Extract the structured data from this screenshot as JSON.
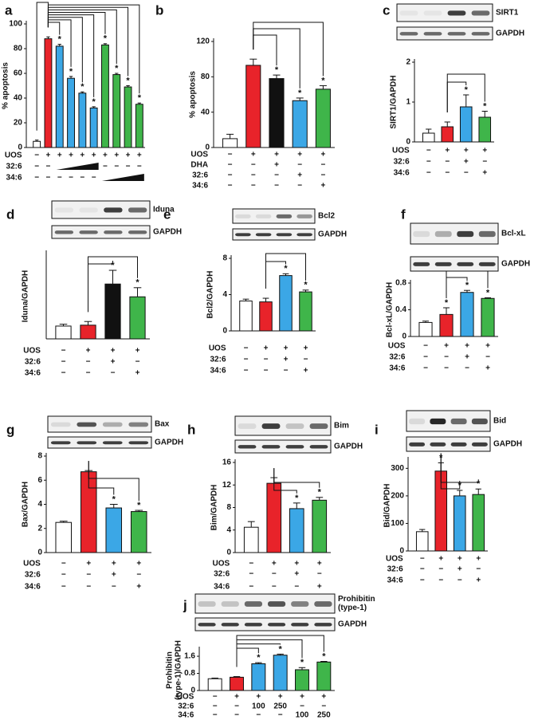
{
  "chart_data": [
    {
      "type": "bar",
      "label": "a",
      "y_label": [
        "% apoptosis"
      ],
      "ylim": [
        0,
        100
      ],
      "yticks": [
        0,
        20,
        40,
        60,
        80,
        100
      ],
      "values": [
        5,
        88,
        82,
        56,
        44,
        32,
        83,
        59,
        49,
        35
      ],
      "errors": [
        1,
        1.5,
        1.5,
        1.5,
        1,
        1,
        1,
        1,
        1,
        1
      ],
      "colors": [
        "#ffffff",
        "#e8232a",
        "#3ba7e6",
        "#3ba7e6",
        "#3ba7e6",
        "#3ba7e6",
        "#3fb54a",
        "#3fb54a",
        "#3fb54a",
        "#3fb54a"
      ],
      "stars": [
        null,
        null,
        "*",
        "*",
        "*",
        "*",
        "*",
        "*",
        "*",
        "*"
      ],
      "comparisons": [
        [
          1,
          2
        ],
        [
          1,
          3
        ],
        [
          1,
          4
        ],
        [
          1,
          5
        ],
        [
          1,
          6
        ],
        [
          1,
          7
        ],
        [
          1,
          8
        ],
        [
          1,
          9
        ],
        [
          0,
          1
        ]
      ],
      "rows": [
        {
          "name": "UOS",
          "marks": [
            "−",
            "+",
            "+",
            "+",
            "+",
            "+",
            "+",
            "+",
            "+",
            "+"
          ]
        },
        {
          "name": "32:6",
          "marks": [
            "−",
            "−",
            null,
            null,
            null,
            null,
            "−",
            "−",
            "−",
            "−"
          ]
        },
        {
          "name": "34:6",
          "marks": [
            "−",
            "−",
            "−",
            "−",
            "−",
            "−",
            null,
            null,
            null,
            null
          ]
        }
      ]
    },
    {
      "type": "bar",
      "label": "b",
      "y_label": [
        "% apoptosis"
      ],
      "ylim": [
        0,
        120
      ],
      "yticks": [
        0,
        40,
        80,
        120
      ],
      "values": [
        10,
        93,
        78,
        53,
        66
      ],
      "errors": [
        5,
        7,
        4,
        3,
        4
      ],
      "colors": [
        "#ffffff",
        "#e8232a",
        "#111111",
        "#3ba7e6",
        "#3fb54a"
      ],
      "stars": [
        null,
        null,
        "*",
        "*",
        "*"
      ],
      "comparisons": [
        [
          1,
          2
        ],
        [
          1,
          3
        ],
        [
          1,
          4
        ]
      ],
      "rows": [
        {
          "name": "UOS",
          "marks": [
            "−",
            "+",
            "+",
            "+",
            "+"
          ]
        },
        {
          "name": "DHA",
          "marks": [
            "−",
            "−",
            "+",
            "−",
            "−"
          ]
        },
        {
          "name": "32:6",
          "marks": [
            "−",
            "−",
            "−",
            "+",
            "−"
          ]
        },
        {
          "name": "34:6",
          "marks": [
            "−",
            "−",
            "−",
            "−",
            "+"
          ]
        }
      ]
    },
    {
      "type": "bar",
      "label": "c",
      "y_label": [
        "SIRT1/GAPDH"
      ],
      "ylim": [
        0,
        2
      ],
      "yticks": [
        0,
        1,
        2
      ],
      "blots": [
        [
          "SIRT1"
        ],
        [
          "GAPDH"
        ]
      ],
      "values": [
        0.22,
        0.38,
        0.88,
        0.62
      ],
      "errors": [
        0.1,
        0.12,
        0.3,
        0.15
      ],
      "colors": [
        "#ffffff",
        "#e8232a",
        "#3ba7e6",
        "#3fb54a"
      ],
      "stars": [
        null,
        null,
        "*",
        "*"
      ],
      "comparisons": [
        [
          1,
          2
        ],
        [
          1,
          3
        ]
      ],
      "rows": [
        {
          "name": "UOS",
          "marks": [
            "−",
            "+",
            "+",
            "+"
          ]
        },
        {
          "name": "32:6",
          "marks": [
            "−",
            "−",
            "+",
            "−"
          ]
        },
        {
          "name": "34:6",
          "marks": [
            "−",
            "−",
            "−",
            "+"
          ]
        }
      ]
    },
    {
      "type": "bar",
      "label": "d",
      "y_label": [
        "Iduna/GAPDH"
      ],
      "ylim": [
        0,
        2.8
      ],
      "blots": [
        [
          "Iduna"
        ],
        [
          "GAPDH"
        ]
      ],
      "values": [
        0.42,
        0.45,
        1.8,
        1.38
      ],
      "errors": [
        0.06,
        0.12,
        0.45,
        0.3
      ],
      "colors": [
        "#ffffff",
        "#e8232a",
        "#111111",
        "#3fb54a"
      ],
      "stars": [
        null,
        null,
        "*",
        "*"
      ],
      "comparisons": [
        [
          1,
          2
        ],
        [
          1,
          3
        ]
      ],
      "rows": [
        {
          "name": "UOS",
          "marks": [
            "−",
            "+",
            "+",
            "+"
          ]
        },
        {
          "name": "32:6",
          "marks": [
            "−",
            "−",
            "+",
            "−"
          ]
        },
        {
          "name": "34:6",
          "marks": [
            "−",
            "−",
            "−",
            "+"
          ]
        }
      ]
    },
    {
      "type": "bar",
      "label": "e",
      "y_label": [
        "Bcl2/GAPDH"
      ],
      "ylim": [
        0,
        8
      ],
      "yticks": [
        0,
        4,
        8
      ],
      "blots": [
        [
          "Bcl2"
        ],
        [
          "GAPDH"
        ]
      ],
      "values": [
        3.3,
        3.2,
        6.1,
        4.3
      ],
      "errors": [
        0.2,
        0.4,
        0.2,
        0.2
      ],
      "colors": [
        "#ffffff",
        "#e8232a",
        "#3ba7e6",
        "#3fb54a"
      ],
      "stars": [
        null,
        null,
        "*",
        "*"
      ],
      "comparisons": [
        [
          1,
          2
        ],
        [
          1,
          3
        ]
      ],
      "rows": [
        {
          "name": "UOS",
          "marks": [
            "−",
            "+",
            "+",
            "+"
          ]
        },
        {
          "name": "32:6",
          "marks": [
            "−",
            "−",
            "+",
            "−"
          ]
        },
        {
          "name": "34:6",
          "marks": [
            "−",
            "−",
            "−",
            "+"
          ]
        }
      ]
    },
    {
      "type": "bar",
      "label": "f",
      "y_label": [
        "Bcl-xL/GAPDH"
      ],
      "ylim": [
        0,
        0.8
      ],
      "yticks": [
        0,
        0.4,
        0.8
      ],
      "blots": [
        [
          "Bcl-xL"
        ],
        [
          "GAPDH"
        ]
      ],
      "values": [
        0.21,
        0.33,
        0.66,
        0.57
      ],
      "errors": [
        0.02,
        0.1,
        0.03,
        0.01
      ],
      "colors": [
        "#ffffff",
        "#e8232a",
        "#3ba7e6",
        "#3fb54a"
      ],
      "stars": [
        null,
        "*",
        "*",
        "*"
      ],
      "comparisons": [
        [
          1,
          2
        ],
        [
          1,
          3
        ]
      ],
      "rows": [
        {
          "name": "UOS",
          "marks": [
            "−",
            "+",
            "+",
            "+"
          ]
        },
        {
          "name": "32:6",
          "marks": [
            "−",
            "−",
            "+",
            "−"
          ]
        },
        {
          "name": "34:6",
          "marks": [
            "−",
            "−",
            "−",
            "+"
          ]
        }
      ]
    },
    {
      "type": "bar",
      "label": "g",
      "y_label": [
        "Bax/GAPDH"
      ],
      "ylim": [
        0,
        8
      ],
      "yticks": [
        0,
        2,
        4,
        6,
        8
      ],
      "blots": [
        [
          "Bax"
        ],
        [
          "GAPDH"
        ]
      ],
      "values": [
        2.5,
        6.7,
        3.7,
        3.4
      ],
      "errors": [
        0.1,
        0.1,
        0.3,
        0.1
      ],
      "colors": [
        "#ffffff",
        "#e8232a",
        "#3ba7e6",
        "#3fb54a"
      ],
      "stars": [
        null,
        null,
        "*",
        "*"
      ],
      "comparisons": [
        [
          1,
          2
        ],
        [
          1,
          3
        ]
      ],
      "rows": [
        {
          "name": "UOS",
          "marks": [
            "−",
            "+",
            "+",
            "+"
          ]
        },
        {
          "name": "32:6",
          "marks": [
            "−",
            "−",
            "+",
            "−"
          ]
        },
        {
          "name": "34:6",
          "marks": [
            "−",
            "−",
            "−",
            "+"
          ]
        }
      ]
    },
    {
      "type": "bar",
      "label": "h",
      "y_label": [
        "Bim/GAPDH"
      ],
      "ylim": [
        0,
        16
      ],
      "yticks": [
        0,
        4,
        8,
        12,
        16
      ],
      "blots": [
        [
          "Bim"
        ],
        [
          "GAPDH"
        ]
      ],
      "values": [
        4.5,
        12.3,
        7.8,
        9.3
      ],
      "errors": [
        1,
        1,
        1,
        0.5
      ],
      "colors": [
        "#ffffff",
        "#e8232a",
        "#3ba7e6",
        "#3fb54a"
      ],
      "stars": [
        null,
        null,
        "*",
        "*"
      ],
      "comparisons": [
        [
          1,
          2
        ],
        [
          1,
          3
        ]
      ],
      "rows": [
        {
          "name": "UOS",
          "marks": [
            "−",
            "+",
            "+",
            "+"
          ]
        },
        {
          "name": "32:6",
          "marks": [
            "−",
            "−",
            "+",
            "−"
          ]
        },
        {
          "name": "34:6",
          "marks": [
            "−",
            "−",
            "−",
            "+"
          ]
        }
      ]
    },
    {
      "type": "bar",
      "label": "i",
      "y_label": [
        "Bid/GAPDH"
      ],
      "ylim": [
        0,
        330
      ],
      "yticks": [
        0,
        100,
        200,
        300
      ],
      "blots": [
        [
          "Bid"
        ],
        [
          "GAPDH"
        ]
      ],
      "values": [
        70,
        290,
        200,
        205
      ],
      "errors": [
        8,
        30,
        20,
        20
      ],
      "colors": [
        "#ffffff",
        "#e8232a",
        "#3ba7e6",
        "#3fb54a"
      ],
      "stars": [
        null,
        "*",
        "*",
        "*"
      ],
      "comparisons": [
        [
          1,
          2
        ],
        [
          1,
          3
        ]
      ],
      "rows": [
        {
          "name": "UOS",
          "marks": [
            "−",
            "+",
            "+",
            "+"
          ]
        },
        {
          "name": "32:6",
          "marks": [
            "−",
            "−",
            "+",
            "−"
          ]
        },
        {
          "name": "34:6",
          "marks": [
            "−",
            "−",
            "−",
            "+"
          ]
        }
      ]
    },
    {
      "type": "bar",
      "label": "j",
      "y_label": [
        "Prohibitin",
        "(type-1)/GAPDH"
      ],
      "ylim": [
        0,
        1.9
      ],
      "yticks": [
        0,
        0.8,
        1.6
      ],
      "blots": [
        [
          "Prohibitin",
          "(type-1)"
        ],
        [
          "GAPDH"
        ]
      ],
      "values": [
        0.55,
        0.62,
        1.25,
        1.65,
        0.97,
        1.33
      ],
      "errors": [
        0.03,
        0.03,
        0.05,
        0.05,
        0.1,
        0.03
      ],
      "colors": [
        "#ffffff",
        "#e8232a",
        "#3ba7e6",
        "#3ba7e6",
        "#3fb54a",
        "#3fb54a"
      ],
      "stars": [
        null,
        null,
        "*",
        "*",
        "*",
        "*"
      ],
      "comparisons": [
        [
          1,
          2
        ],
        [
          1,
          3
        ],
        [
          1,
          4
        ],
        [
          1,
          5
        ]
      ],
      "rows": [
        {
          "name": "UOS",
          "marks": [
            "−",
            "+",
            "+",
            "+",
            "+",
            "+"
          ]
        },
        {
          "name": "32:6",
          "marks": [
            "−",
            "−",
            "100",
            "250",
            "−",
            "−"
          ]
        },
        {
          "name": "34:6",
          "marks": [
            "−",
            "−",
            "−",
            "−",
            "100",
            "250"
          ]
        }
      ]
    }
  ]
}
